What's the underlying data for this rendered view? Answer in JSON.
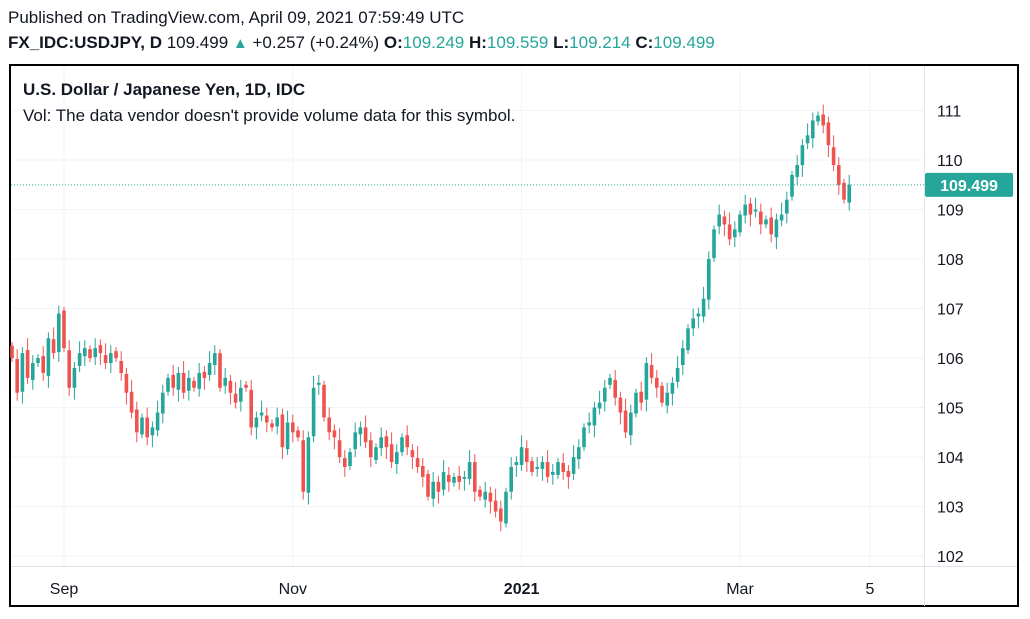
{
  "header": {
    "published": "Published on TradingView.com, April 09, 2021 07:59:49 UTC",
    "symbol": "FX_IDC:USDJPY, D",
    "last": "109.499",
    "change": "+0.257 (+0.24%)",
    "o_label": "O:",
    "o_value": "109.249",
    "h_label": "H:",
    "h_value": "109.559",
    "l_label": "L:",
    "l_value": "109.214",
    "c_label": "C:",
    "c_value": "109.499"
  },
  "colors": {
    "up": "#26a69a",
    "down": "#ef5350",
    "price_tag": "#26a69a"
  },
  "chart_data": {
    "type": "candlestick",
    "title": "U.S. Dollar / Japanese Yen, 1D, IDC",
    "volume_note": "Vol: The data vendor doesn't provide volume data for this symbol.",
    "y_ticks": [
      "102",
      "103",
      "104",
      "105",
      "106",
      "107",
      "108",
      "109",
      "110",
      "111"
    ],
    "ylim": [
      101.8,
      111.9
    ],
    "x_ticks": [
      {
        "label": "Sep",
        "index": 10,
        "bold": false
      },
      {
        "label": "Nov",
        "index": 54,
        "bold": false
      },
      {
        "label": "2021",
        "index": 98,
        "bold": true
      },
      {
        "label": "Mar",
        "index": 140,
        "bold": false
      },
      {
        "label": "5",
        "index": 165,
        "bold": false
      }
    ],
    "last_price": 109.499,
    "last_price_label": "109.499",
    "closes": [
      106.0,
      105.3,
      106.1,
      105.6,
      105.9,
      106.0,
      105.7,
      106.4,
      106.1,
      106.9,
      106.2,
      105.4,
      105.8,
      106.1,
      106.2,
      106.0,
      106.2,
      106.1,
      105.9,
      106.1,
      106.0,
      105.7,
      105.3,
      104.9,
      104.5,
      104.8,
      104.4,
      104.6,
      104.9,
      105.3,
      105.6,
      105.4,
      105.7,
      105.3,
      105.6,
      105.4,
      105.7,
      105.6,
      105.9,
      106.1,
      105.4,
      105.6,
      105.3,
      105.1,
      105.4,
      105.4,
      104.6,
      104.8,
      104.9,
      104.7,
      104.6,
      104.8,
      104.2,
      104.7,
      104.5,
      104.4,
      103.3,
      104.4,
      105.4,
      105.5,
      104.8,
      104.5,
      104.4,
      104.0,
      103.8,
      104.1,
      104.5,
      104.6,
      104.3,
      104.0,
      104.2,
      104.4,
      104.2,
      103.9,
      104.1,
      104.4,
      104.2,
      104.0,
      103.8,
      103.6,
      103.2,
      103.5,
      103.3,
      103.7,
      103.5,
      103.6,
      103.5,
      103.6,
      103.9,
      103.3,
      103.2,
      103.3,
      103.1,
      102.9,
      102.7,
      103.3,
      103.8,
      103.9,
      104.2,
      103.9,
      103.7,
      103.8,
      103.9,
      103.6,
      103.7,
      103.9,
      103.7,
      103.6,
      104.0,
      104.2,
      104.6,
      104.7,
      105.0,
      105.1,
      105.4,
      105.6,
      105.2,
      104.9,
      104.5,
      104.9,
      105.3,
      105.1,
      105.9,
      105.6,
      105.4,
      105.1,
      105.3,
      105.5,
      105.8,
      106.2,
      106.6,
      106.8,
      106.9,
      107.2,
      108.0,
      108.6,
      108.9,
      108.7,
      108.4,
      108.6,
      108.9,
      109.1,
      108.9,
      109.0,
      108.7,
      108.8,
      108.5,
      108.8,
      108.9,
      109.2,
      109.7,
      109.9,
      110.3,
      110.5,
      110.8,
      110.9,
      110.7,
      110.3,
      109.9,
      109.5,
      109.2,
      109.5
    ]
  }
}
